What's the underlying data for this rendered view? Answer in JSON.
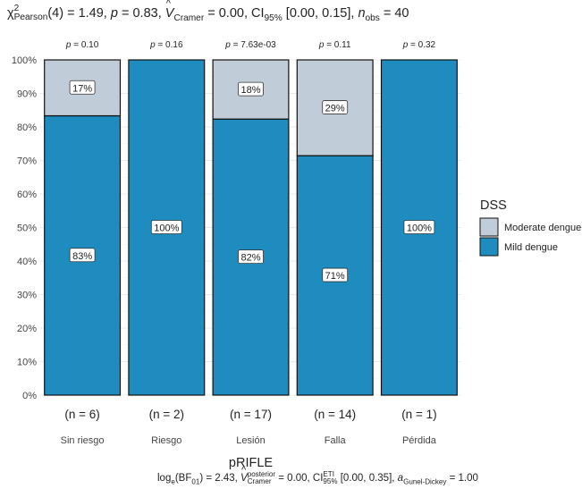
{
  "subtitle": {
    "chi": "χ",
    "chi_sup": "2",
    "chi_sub": "Pearson",
    "df": "(4) = 1.49, ",
    "p_sym": "p",
    "p_val": " = 0.83, ",
    "v_sym": "V",
    "v_sub": "Cramer",
    "v_val": " = 0.00, CI",
    "ci_sub": "95%",
    "ci_val": " [0.00, 0.15], ",
    "n_sym": "n",
    "n_sub": "obs",
    "n_val": " = 40"
  },
  "caption": {
    "log": "log",
    "log_sub": "e",
    "bf": "(BF",
    "bf_sub": "01",
    "bf_val": ") = 2.43, ",
    "v_sym": "V",
    "v_sup": "posterior",
    "v_sub": "Cramer",
    "v_val": " = 0.00, CI",
    "ci_sup": "ETI",
    "ci_sub": "95%",
    "ci_val": " [0.00, 0.35], ",
    "a_sym": "a",
    "a_sub": "Gunel-Dickey",
    "a_val": " = 1.00"
  },
  "chart_data": {
    "type": "bar",
    "stacked": true,
    "categories": [
      "Sin riesgo",
      "Riesgo",
      "Lesión",
      "Falla",
      "Pérdida"
    ],
    "series": [
      {
        "name": "Mild dengue",
        "values": [
          83.33,
          100,
          82.35,
          71.43,
          100
        ],
        "labels": [
          "83%",
          "100%",
          "82%",
          "71%",
          "100%"
        ],
        "color": "#1F8CC0"
      },
      {
        "name": "Moderate dengue",
        "values": [
          16.67,
          0,
          17.65,
          28.57,
          0
        ],
        "labels": [
          "17%",
          "",
          "18%",
          "29%",
          ""
        ],
        "color": "#C0CCD7"
      }
    ],
    "p_labels": [
      "p = 0.10",
      "p = 0.16",
      "p = 7.63e-03",
      "p = 0.11",
      "p = 0.32"
    ],
    "n_labels": [
      "(n = 6)",
      "(n = 2)",
      "(n = 17)",
      "(n = 14)",
      "(n = 1)"
    ],
    "xlabel": "pRIFLE",
    "ylabel": "",
    "ylim": [
      0,
      100
    ],
    "yticks": [
      "0%",
      "10%",
      "20%",
      "30%",
      "40%",
      "50%",
      "60%",
      "70%",
      "80%",
      "90%",
      "100%"
    ],
    "legend": {
      "title": "DSS",
      "position": "right",
      "entries": [
        "Moderate dengue",
        "Mild dengue"
      ],
      "colors": [
        "#C0CCD7",
        "#1F8CC0"
      ]
    },
    "grid": true
  }
}
